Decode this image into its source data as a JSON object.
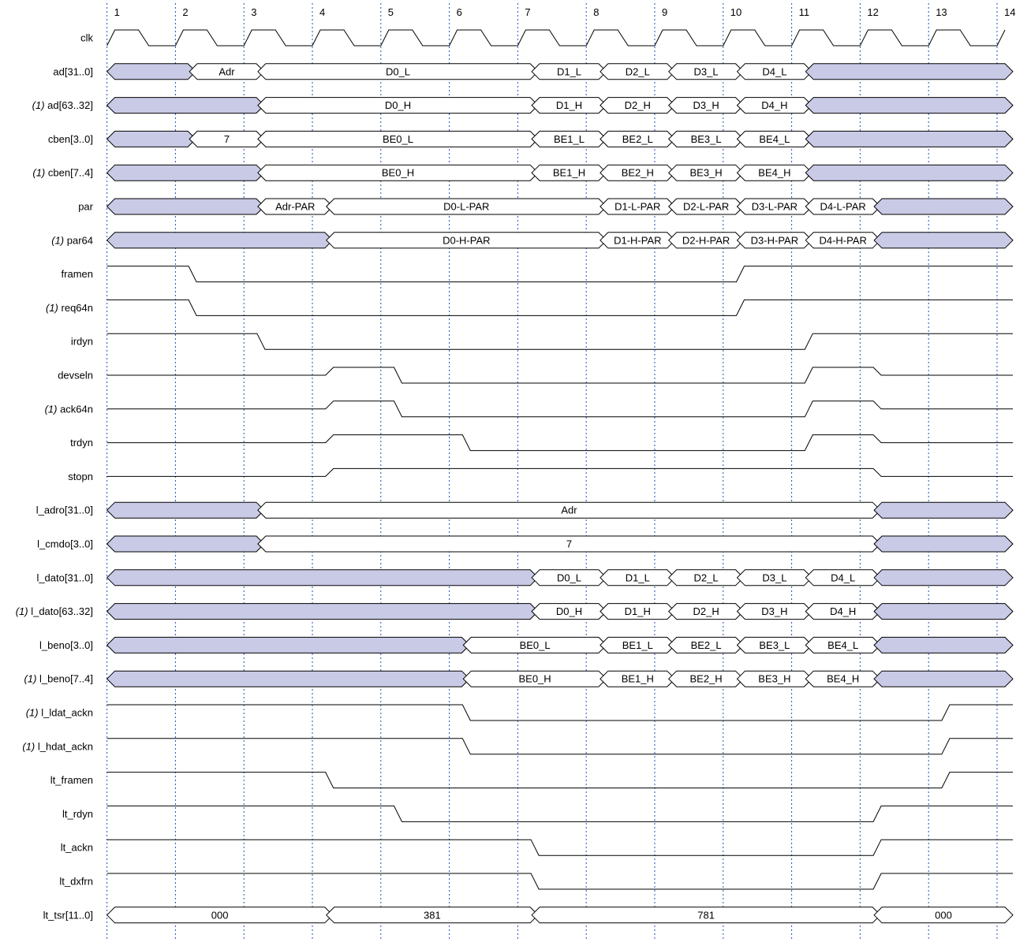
{
  "colors": {
    "invalid_fill": "#c8cae6",
    "stroke": "#000000",
    "gridline": "#1f4fbf",
    "background": "#ffffff"
  },
  "cycles": [
    "1",
    "2",
    "3",
    "4",
    "5",
    "6",
    "7",
    "8",
    "9",
    "10",
    "11",
    "12",
    "13",
    "14"
  ],
  "signals": [
    {
      "prefix": "",
      "name": "clk",
      "type": "clock"
    },
    {
      "prefix": "",
      "name": "ad[31..0]",
      "type": "bus",
      "segments": [
        {
          "v": null,
          "s": 1,
          "e": 2.25
        },
        {
          "v": "Adr",
          "s": 2.25,
          "e": 3.25
        },
        {
          "v": "D0_L",
          "s": 3.25,
          "e": 7.25
        },
        {
          "v": "D1_L",
          "s": 7.25,
          "e": 8.25
        },
        {
          "v": "D2_L",
          "s": 8.25,
          "e": 9.25
        },
        {
          "v": "D3_L",
          "s": 9.25,
          "e": 10.25
        },
        {
          "v": "D4_L",
          "s": 10.25,
          "e": 11.25
        },
        {
          "v": null,
          "s": 11.25,
          "e": 14.2
        }
      ]
    },
    {
      "prefix": "(1)",
      "name": "ad[63..32]",
      "type": "bus",
      "segments": [
        {
          "v": null,
          "s": 1,
          "e": 3.25
        },
        {
          "v": "D0_H",
          "s": 3.25,
          "e": 7.25
        },
        {
          "v": "D1_H",
          "s": 7.25,
          "e": 8.25
        },
        {
          "v": "D2_H",
          "s": 8.25,
          "e": 9.25
        },
        {
          "v": "D3_H",
          "s": 9.25,
          "e": 10.25
        },
        {
          "v": "D4_H",
          "s": 10.25,
          "e": 11.25
        },
        {
          "v": null,
          "s": 11.25,
          "e": 14.2
        }
      ]
    },
    {
      "prefix": "",
      "name": "cben[3..0]",
      "type": "bus",
      "segments": [
        {
          "v": null,
          "s": 1,
          "e": 2.25
        },
        {
          "v": "7",
          "s": 2.25,
          "e": 3.25
        },
        {
          "v": "BE0_L",
          "s": 3.25,
          "e": 7.25
        },
        {
          "v": "BE1_L",
          "s": 7.25,
          "e": 8.25
        },
        {
          "v": "BE2_L",
          "s": 8.25,
          "e": 9.25
        },
        {
          "v": "BE3_L",
          "s": 9.25,
          "e": 10.25
        },
        {
          "v": "BE4_L",
          "s": 10.25,
          "e": 11.25
        },
        {
          "v": null,
          "s": 11.25,
          "e": 14.2
        }
      ]
    },
    {
      "prefix": "(1)",
      "name": "cben[7..4]",
      "type": "bus",
      "segments": [
        {
          "v": null,
          "s": 1,
          "e": 3.25
        },
        {
          "v": "BE0_H",
          "s": 3.25,
          "e": 7.25
        },
        {
          "v": "BE1_H",
          "s": 7.25,
          "e": 8.25
        },
        {
          "v": "BE2_H",
          "s": 8.25,
          "e": 9.25
        },
        {
          "v": "BE3_H",
          "s": 9.25,
          "e": 10.25
        },
        {
          "v": "BE4_H",
          "s": 10.25,
          "e": 11.25
        },
        {
          "v": null,
          "s": 11.25,
          "e": 14.2
        }
      ]
    },
    {
      "prefix": "",
      "name": "par",
      "type": "bus",
      "segments": [
        {
          "v": null,
          "s": 1,
          "e": 3.25
        },
        {
          "v": "Adr-PAR",
          "s": 3.25,
          "e": 4.25
        },
        {
          "v": "D0-L-PAR",
          "s": 4.25,
          "e": 8.25
        },
        {
          "v": "D1-L-PAR",
          "s": 8.25,
          "e": 9.25
        },
        {
          "v": "D2-L-PAR",
          "s": 9.25,
          "e": 10.25
        },
        {
          "v": "D3-L-PAR",
          "s": 10.25,
          "e": 11.25
        },
        {
          "v": "D4-L-PAR",
          "s": 11.25,
          "e": 12.25
        },
        {
          "v": null,
          "s": 12.25,
          "e": 14.2
        }
      ]
    },
    {
      "prefix": "(1)",
      "name": "par64",
      "type": "bus",
      "segments": [
        {
          "v": null,
          "s": 1,
          "e": 4.25
        },
        {
          "v": "D0-H-PAR",
          "s": 4.25,
          "e": 8.25
        },
        {
          "v": "D1-H-PAR",
          "s": 8.25,
          "e": 9.25
        },
        {
          "v": "D2-H-PAR",
          "s": 9.25,
          "e": 10.25
        },
        {
          "v": "D3-H-PAR",
          "s": 10.25,
          "e": 11.25
        },
        {
          "v": "D4-H-PAR",
          "s": 11.25,
          "e": 12.25
        },
        {
          "v": null,
          "s": 12.25,
          "e": 14.2
        }
      ]
    },
    {
      "prefix": "",
      "name": "framen",
      "type": "wire",
      "init": 1,
      "transitions": [
        [
          2.25,
          0
        ],
        [
          10.25,
          1
        ]
      ]
    },
    {
      "prefix": "(1)",
      "name": "req64n",
      "type": "wire",
      "init": 1,
      "transitions": [
        [
          2.25,
          0
        ],
        [
          10.25,
          1
        ]
      ]
    },
    {
      "prefix": "",
      "name": "irdyn",
      "type": "wire",
      "init": 1,
      "transitions": [
        [
          3.25,
          0
        ],
        [
          11.25,
          1
        ]
      ]
    },
    {
      "prefix": "",
      "name": "devseln",
      "type": "wire",
      "init": 0.5,
      "transitions": [
        [
          4.25,
          1
        ],
        [
          5.25,
          0
        ],
        [
          11.25,
          1
        ],
        [
          12.25,
          0.5
        ]
      ]
    },
    {
      "prefix": "(1)",
      "name": "ack64n",
      "type": "wire",
      "init": 0.5,
      "transitions": [
        [
          4.25,
          1
        ],
        [
          5.25,
          0
        ],
        [
          11.25,
          1
        ],
        [
          12.25,
          0.5
        ]
      ]
    },
    {
      "prefix": "",
      "name": "trdyn",
      "type": "wire",
      "init": 0.5,
      "transitions": [
        [
          4.25,
          1
        ],
        [
          6.25,
          0
        ],
        [
          11.25,
          1
        ],
        [
          12.25,
          0.5
        ]
      ]
    },
    {
      "prefix": "",
      "name": "stopn",
      "type": "wire",
      "init": 0.5,
      "transitions": [
        [
          4.25,
          1
        ],
        [
          12.25,
          0.5
        ]
      ]
    },
    {
      "prefix": "",
      "name": "l_adro[31..0]",
      "type": "bus",
      "segments": [
        {
          "v": null,
          "s": 1,
          "e": 3.25
        },
        {
          "v": "Adr",
          "s": 3.25,
          "e": 12.25
        },
        {
          "v": null,
          "s": 12.25,
          "e": 14.2
        }
      ]
    },
    {
      "prefix": "",
      "name": "l_cmdo[3..0]",
      "type": "bus",
      "segments": [
        {
          "v": null,
          "s": 1,
          "e": 3.25
        },
        {
          "v": "7",
          "s": 3.25,
          "e": 12.25
        },
        {
          "v": null,
          "s": 12.25,
          "e": 14.2
        }
      ]
    },
    {
      "prefix": "",
      "name": "l_dato[31..0]",
      "type": "bus",
      "segments": [
        {
          "v": null,
          "s": 1,
          "e": 7.25
        },
        {
          "v": "D0_L",
          "s": 7.25,
          "e": 8.25
        },
        {
          "v": "D1_L",
          "s": 8.25,
          "e": 9.25
        },
        {
          "v": "D2_L",
          "s": 9.25,
          "e": 10.25
        },
        {
          "v": "D3_L",
          "s": 10.25,
          "e": 11.25
        },
        {
          "v": "D4_L",
          "s": 11.25,
          "e": 12.25
        },
        {
          "v": null,
          "s": 12.25,
          "e": 14.2
        }
      ]
    },
    {
      "prefix": "(1)",
      "name": "l_dato[63..32]",
      "type": "bus",
      "segments": [
        {
          "v": null,
          "s": 1,
          "e": 7.25
        },
        {
          "v": "D0_H",
          "s": 7.25,
          "e": 8.25
        },
        {
          "v": "D1_H",
          "s": 8.25,
          "e": 9.25
        },
        {
          "v": "D2_H",
          "s": 9.25,
          "e": 10.25
        },
        {
          "v": "D3_H",
          "s": 10.25,
          "e": 11.25
        },
        {
          "v": "D4_H",
          "s": 11.25,
          "e": 12.25
        },
        {
          "v": null,
          "s": 12.25,
          "e": 14.2
        }
      ]
    },
    {
      "prefix": "",
      "name": "l_beno[3..0]",
      "type": "bus",
      "segments": [
        {
          "v": null,
          "s": 1,
          "e": 6.25
        },
        {
          "v": "BE0_L",
          "s": 6.25,
          "e": 8.25
        },
        {
          "v": "BE1_L",
          "s": 8.25,
          "e": 9.25
        },
        {
          "v": "BE2_L",
          "s": 9.25,
          "e": 10.25
        },
        {
          "v": "BE3_L",
          "s": 10.25,
          "e": 11.25
        },
        {
          "v": "BE4_L",
          "s": 11.25,
          "e": 12.25
        },
        {
          "v": null,
          "s": 12.25,
          "e": 14.2
        }
      ]
    },
    {
      "prefix": "(1)",
      "name": "l_beno[7..4]",
      "type": "bus",
      "segments": [
        {
          "v": null,
          "s": 1,
          "e": 6.25
        },
        {
          "v": "BE0_H",
          "s": 6.25,
          "e": 8.25
        },
        {
          "v": "BE1_H",
          "s": 8.25,
          "e": 9.25
        },
        {
          "v": "BE2_H",
          "s": 9.25,
          "e": 10.25
        },
        {
          "v": "BE3_H",
          "s": 10.25,
          "e": 11.25
        },
        {
          "v": "BE4_H",
          "s": 11.25,
          "e": 12.25
        },
        {
          "v": null,
          "s": 12.25,
          "e": 14.2
        }
      ]
    },
    {
      "prefix": "(1)",
      "name": "l_ldat_ackn",
      "type": "wire",
      "init": 1,
      "transitions": [
        [
          6.25,
          0
        ],
        [
          13.25,
          1
        ]
      ]
    },
    {
      "prefix": "(1)",
      "name": "l_hdat_ackn",
      "type": "wire",
      "init": 1,
      "transitions": [
        [
          6.25,
          0
        ],
        [
          13.25,
          1
        ]
      ]
    },
    {
      "prefix": "",
      "name": "lt_framen",
      "type": "wire",
      "init": 1,
      "transitions": [
        [
          4.25,
          0
        ],
        [
          13.25,
          1
        ]
      ]
    },
    {
      "prefix": "",
      "name": "lt_rdyn",
      "type": "wire",
      "init": 1,
      "transitions": [
        [
          5.25,
          0
        ],
        [
          12.25,
          1
        ]
      ]
    },
    {
      "prefix": "",
      "name": "lt_ackn",
      "type": "wire",
      "init": 1,
      "transitions": [
        [
          7.25,
          0
        ],
        [
          12.25,
          1
        ]
      ]
    },
    {
      "prefix": "",
      "name": "lt_dxfrn",
      "type": "wire",
      "init": 1,
      "transitions": [
        [
          7.25,
          0
        ],
        [
          12.25,
          1
        ]
      ]
    },
    {
      "prefix": "",
      "name": "lt_tsr[11..0]",
      "type": "bus",
      "segments": [
        {
          "v": "000",
          "s": 1,
          "e": 4.25
        },
        {
          "v": "381",
          "s": 4.25,
          "e": 7.25
        },
        {
          "v": "781",
          "s": 7.25,
          "e": 12.25
        },
        {
          "v": "000",
          "s": 12.25,
          "e": 14.2
        }
      ]
    }
  ]
}
